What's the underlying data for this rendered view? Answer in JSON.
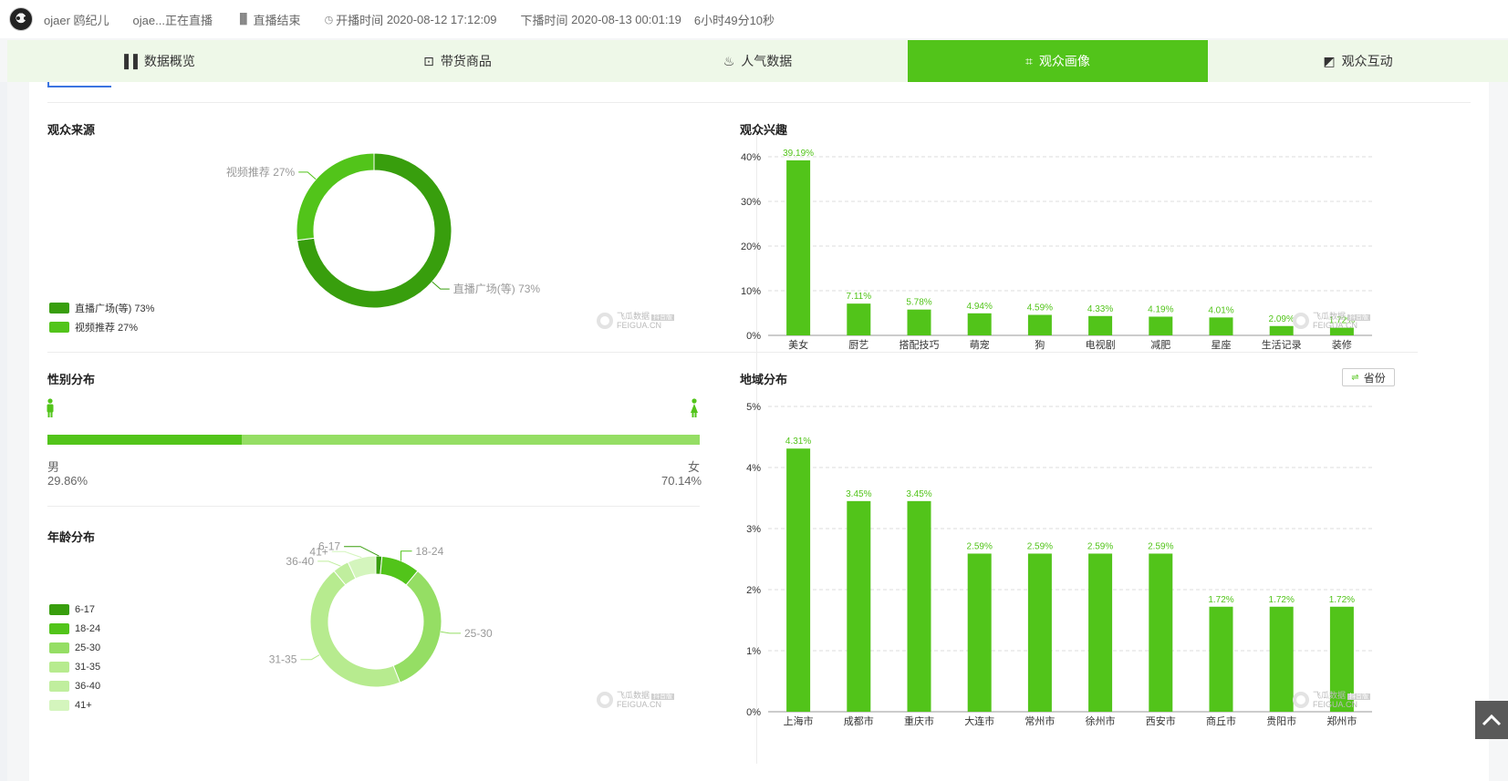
{
  "header": {
    "account_name": "ojaer 鸥纪儿",
    "live_title": "ojae...正在直播",
    "live_status": "直播结束",
    "start_label": "开播时间",
    "start_time": "2020-08-12 17:12:09",
    "end_label": "下播时间",
    "end_time": "2020-08-13 00:01:19",
    "duration": "6小时49分10秒"
  },
  "tabs": [
    {
      "label": "数据概览",
      "icon": "bar-chart-icon"
    },
    {
      "label": "带货商品",
      "icon": "shopping-bag-icon"
    },
    {
      "label": "人气数据",
      "icon": "flame-icon"
    },
    {
      "label": "观众画像",
      "icon": "user-scan-icon",
      "active": true
    },
    {
      "label": "观众互动",
      "icon": "interact-icon"
    }
  ],
  "sections": {
    "source": "观众来源",
    "interest": "观众兴趣",
    "gender": "性别分布",
    "region": "地域分布",
    "age": "年龄分布"
  },
  "gender": {
    "male_label": "男",
    "female_label": "女",
    "male_pct": "29.86%",
    "female_pct": "70.14%",
    "male_fraction": 0.2986
  },
  "region_toggle": "省份",
  "watermark": {
    "name": "飞瓜数据",
    "sub": "FEIGUA.CN",
    "badge": "抖音版"
  },
  "colors": {
    "accent": "#52c41a",
    "dark_green": "#389e0d",
    "light_green": "#95de64",
    "pale_green": "#b7eb8f",
    "tab_bg": "#eef8e8"
  },
  "chart_data": [
    {
      "type": "pie",
      "id": "source",
      "title": "观众来源",
      "categories": [
        "直播广场(等)",
        "视频推荐"
      ],
      "values": [
        73,
        27
      ],
      "value_labels": [
        "直播广场(等) 73%",
        "视频推荐 27%"
      ],
      "colors": [
        "#389e0d",
        "#52c41a"
      ],
      "legend": "bottom-left"
    },
    {
      "type": "bar",
      "id": "interest",
      "title": "观众兴趣",
      "categories": [
        "美女",
        "厨艺",
        "搭配技巧",
        "萌宠",
        "狗",
        "电视剧",
        "减肥",
        "星座",
        "生活记录",
        "装修"
      ],
      "values": [
        39.19,
        7.11,
        5.78,
        4.94,
        4.59,
        4.33,
        4.19,
        4.01,
        2.09,
        1.72
      ],
      "value_labels": [
        "39.19%",
        "7.11%",
        "5.78%",
        "4.94%",
        "4.59%",
        "4.33%",
        "4.19%",
        "4.01%",
        "2.09%",
        "1.72%"
      ],
      "ylim": [
        0,
        40
      ],
      "yticks": [
        "0%",
        "10%",
        "20%",
        "30%",
        "40%"
      ],
      "grid": true
    },
    {
      "type": "bar",
      "id": "region",
      "title": "地域分布",
      "categories": [
        "上海市",
        "成都市",
        "重庆市",
        "大连市",
        "常州市",
        "徐州市",
        "西安市",
        "商丘市",
        "贵阳市",
        "郑州市"
      ],
      "values": [
        4.31,
        3.45,
        3.45,
        2.59,
        2.59,
        2.59,
        2.59,
        1.72,
        1.72,
        1.72
      ],
      "value_labels": [
        "4.31%",
        "3.45%",
        "3.45%",
        "2.59%",
        "2.59%",
        "2.59%",
        "2.59%",
        "1.72%",
        "1.72%",
        "1.72%"
      ],
      "ylim": [
        0,
        5
      ],
      "yticks": [
        "0%",
        "1%",
        "2%",
        "3%",
        "4%",
        "5%"
      ],
      "grid": true
    },
    {
      "type": "pie",
      "id": "age",
      "title": "年龄分布",
      "categories": [
        "6-17",
        "18-24",
        "25-30",
        "31-35",
        "36-40",
        "41+"
      ],
      "values": [
        1.5,
        9.5,
        33,
        45,
        4,
        7
      ],
      "colors": [
        "#389e0d",
        "#52c41a",
        "#95de64",
        "#b7eb8f",
        "#c0ee9e",
        "#d4f5bd"
      ],
      "legend": "left"
    }
  ]
}
